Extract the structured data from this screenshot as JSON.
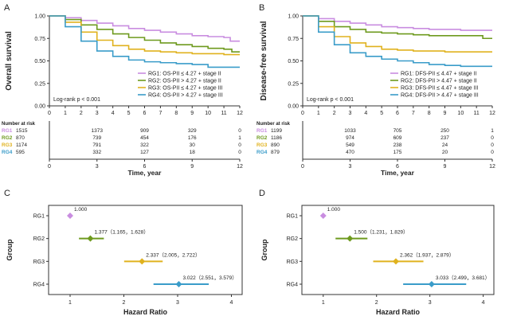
{
  "colors": {
    "RG1": "#c98de0",
    "RG2": "#6e9a1e",
    "RG3": "#e0b21e",
    "RG4": "#3a9cc9",
    "axis": "#333333",
    "text": "#222222"
  },
  "chart_data": [
    {
      "panel_label": "A",
      "type": "line",
      "step": true,
      "ylabel": "Overall survival",
      "xlabel": "Time, year",
      "xlim": [
        0,
        12
      ],
      "ylim": [
        0,
        1
      ],
      "xticks": [
        "0",
        "1",
        "2",
        "3",
        "4",
        "5",
        "6",
        "7",
        "8",
        "9",
        "10",
        "11",
        "12"
      ],
      "yticks": [
        "0.00",
        "0.25",
        "0.50",
        "0.75",
        "1.00"
      ],
      "annotation": "Log-rank p < 0.001",
      "legend_position": "bottom-right",
      "series": [
        {
          "name": "RG1: OS-PII ≤ 4.27 + stage II",
          "color_key": "RG1",
          "x": [
            0,
            1,
            2,
            3,
            4,
            5,
            6,
            7,
            8,
            9,
            10,
            11,
            11.4,
            12
          ],
          "y": [
            1,
            0.98,
            0.95,
            0.92,
            0.89,
            0.86,
            0.84,
            0.82,
            0.8,
            0.78,
            0.77,
            0.76,
            0.72,
            0.72
          ]
        },
        {
          "name": "RG2: OS-PII > 4.27 + stage II",
          "color_key": "RG2",
          "x": [
            0,
            1,
            2,
            3,
            4,
            5,
            6,
            7,
            8,
            9,
            10,
            11,
            11.5,
            12
          ],
          "y": [
            1,
            0.96,
            0.9,
            0.85,
            0.8,
            0.76,
            0.73,
            0.7,
            0.68,
            0.66,
            0.64,
            0.63,
            0.6,
            0.6
          ]
        },
        {
          "name": "RG3: OS-PII ≤ 4.27 + stage III",
          "color_key": "RG3",
          "x": [
            0,
            1,
            2,
            3,
            4,
            5,
            6,
            7,
            8,
            9,
            10,
            11,
            12
          ],
          "y": [
            1,
            0.93,
            0.82,
            0.73,
            0.67,
            0.63,
            0.61,
            0.6,
            0.59,
            0.58,
            0.58,
            0.57,
            0.57
          ]
        },
        {
          "name": "RG4: OS-PII > 4.27 + stage III",
          "color_key": "RG4",
          "x": [
            0,
            1,
            2,
            3,
            4,
            5,
            6,
            7,
            8,
            9,
            10,
            11,
            12
          ],
          "y": [
            1,
            0.88,
            0.72,
            0.61,
            0.55,
            0.51,
            0.49,
            0.48,
            0.47,
            0.46,
            0.43,
            0.43,
            0.43
          ]
        }
      ],
      "risk_table": {
        "title": "Number at risk",
        "times": [
          "0",
          "3",
          "6",
          "9",
          "12"
        ],
        "xlabel": "Time, year",
        "rows": [
          {
            "label": "RG1",
            "color_key": "RG1",
            "values": [
              "1515",
              "1373",
              "909",
              "329",
              "0"
            ]
          },
          {
            "label": "RG2",
            "color_key": "RG2",
            "values": [
              "870",
              "739",
              "454",
              "176",
              "1"
            ]
          },
          {
            "label": "RG3",
            "color_key": "RG3",
            "values": [
              "1174",
              "791",
              "322",
              "30",
              "0"
            ]
          },
          {
            "label": "RG4",
            "color_key": "RG4",
            "values": [
              "595",
              "332",
              "127",
              "18",
              "0"
            ]
          }
        ]
      }
    },
    {
      "panel_label": "B",
      "type": "line",
      "step": true,
      "ylabel": "Disease-free survival",
      "xlabel": "Time, year",
      "xlim": [
        0,
        12
      ],
      "ylim": [
        0,
        1
      ],
      "xticks": [
        "0",
        "1",
        "2",
        "3",
        "4",
        "5",
        "6",
        "7",
        "8",
        "9",
        "10",
        "11",
        "12"
      ],
      "yticks": [
        "0.00",
        "0.25",
        "0.50",
        "0.75",
        "1.00"
      ],
      "annotation": "Log-rank p < 0.001",
      "legend_position": "bottom-right",
      "series": [
        {
          "name": "RG1: DFS-PII ≤ 4.47 + stage II",
          "color_key": "RG1",
          "x": [
            0,
            1,
            2,
            3,
            4,
            5,
            6,
            7,
            8,
            9,
            10,
            11,
            12
          ],
          "y": [
            1,
            0.97,
            0.94,
            0.92,
            0.9,
            0.88,
            0.87,
            0.86,
            0.85,
            0.85,
            0.84,
            0.84,
            0.84
          ]
        },
        {
          "name": "RG2: DFS-PII > 4.47 + stage II",
          "color_key": "RG2",
          "x": [
            0,
            1,
            2,
            3,
            4,
            5,
            6,
            7,
            8,
            9,
            10,
            11,
            11.4,
            12
          ],
          "y": [
            1,
            0.94,
            0.88,
            0.85,
            0.82,
            0.81,
            0.8,
            0.79,
            0.78,
            0.78,
            0.78,
            0.78,
            0.75,
            0.75
          ]
        },
        {
          "name": "RG3: DFS-PII ≤ 4.47 + stage III",
          "color_key": "RG3",
          "x": [
            0,
            1,
            2,
            3,
            4,
            5,
            6,
            7,
            8,
            9,
            10,
            11,
            12
          ],
          "y": [
            1,
            0.88,
            0.77,
            0.7,
            0.66,
            0.63,
            0.62,
            0.61,
            0.61,
            0.6,
            0.6,
            0.6,
            0.6
          ]
        },
        {
          "name": "RG4: DFS-PII > 4.47 + stage III",
          "color_key": "RG4",
          "x": [
            0,
            1,
            2,
            3,
            4,
            5,
            6,
            7,
            8,
            9,
            10,
            11,
            12
          ],
          "y": [
            1,
            0.82,
            0.68,
            0.59,
            0.55,
            0.52,
            0.5,
            0.48,
            0.46,
            0.45,
            0.44,
            0.44,
            0.44
          ]
        }
      ],
      "risk_table": {
        "title": "Number at risk",
        "times": [
          "0",
          "3",
          "6",
          "9",
          "12"
        ],
        "xlabel": "Time, year",
        "rows": [
          {
            "label": "RG1",
            "color_key": "RG1",
            "values": [
              "1199",
              "1033",
              "705",
              "250",
              "1"
            ]
          },
          {
            "label": "RG2",
            "color_key": "RG2",
            "values": [
              "1186",
              "974",
              "609",
              "237",
              "0"
            ]
          },
          {
            "label": "RG3",
            "color_key": "RG3",
            "values": [
              "890",
              "549",
              "238",
              "24",
              "0"
            ]
          },
          {
            "label": "RG4",
            "color_key": "RG4",
            "values": [
              "879",
              "470",
              "175",
              "20",
              "0"
            ]
          }
        ]
      }
    },
    {
      "panel_label": "C",
      "type": "scatter",
      "subtype": "forest",
      "ylabel": "Group",
      "xlabel": "Hazard Ratio",
      "xlim": [
        0.6,
        4.2
      ],
      "xticks": [
        1,
        2,
        3,
        4
      ],
      "rows": [
        {
          "group": "RG1",
          "color_key": "RG1",
          "hr": 1.0,
          "lo": 1.0,
          "hi": 1.0,
          "label": "1.000",
          "reference": true
        },
        {
          "group": "RG2",
          "color_key": "RG2",
          "hr": 1.377,
          "lo": 1.165,
          "hi": 1.628,
          "label": "1.377（1.165，1.628）"
        },
        {
          "group": "RG3",
          "color_key": "RG3",
          "hr": 2.337,
          "lo": 2.005,
          "hi": 2.722,
          "label": "2.337（2.005，2.722）"
        },
        {
          "group": "RG4",
          "color_key": "RG4",
          "hr": 3.022,
          "lo": 2.551,
          "hi": 3.579,
          "label": "3.022（2.551，3.579）"
        }
      ]
    },
    {
      "panel_label": "D",
      "type": "scatter",
      "subtype": "forest",
      "ylabel": "Group",
      "xlabel": "Hazard Ratio",
      "xlim": [
        0.6,
        4.2
      ],
      "xticks": [
        1,
        2,
        3,
        4
      ],
      "rows": [
        {
          "group": "RG1",
          "color_key": "RG1",
          "hr": 1.0,
          "lo": 1.0,
          "hi": 1.0,
          "label": "1.000",
          "reference": true
        },
        {
          "group": "RG2",
          "color_key": "RG2",
          "hr": 1.5,
          "lo": 1.231,
          "hi": 1.829,
          "label": "1.500（1.231，1.829）"
        },
        {
          "group": "RG3",
          "color_key": "RG3",
          "hr": 2.362,
          "lo": 1.937,
          "hi": 2.879,
          "label": "2.362（1.937，2.879）"
        },
        {
          "group": "RG4",
          "color_key": "RG4",
          "hr": 3.033,
          "lo": 2.499,
          "hi": 3.681,
          "label": "3.033（2.499，3.681）"
        }
      ]
    }
  ]
}
